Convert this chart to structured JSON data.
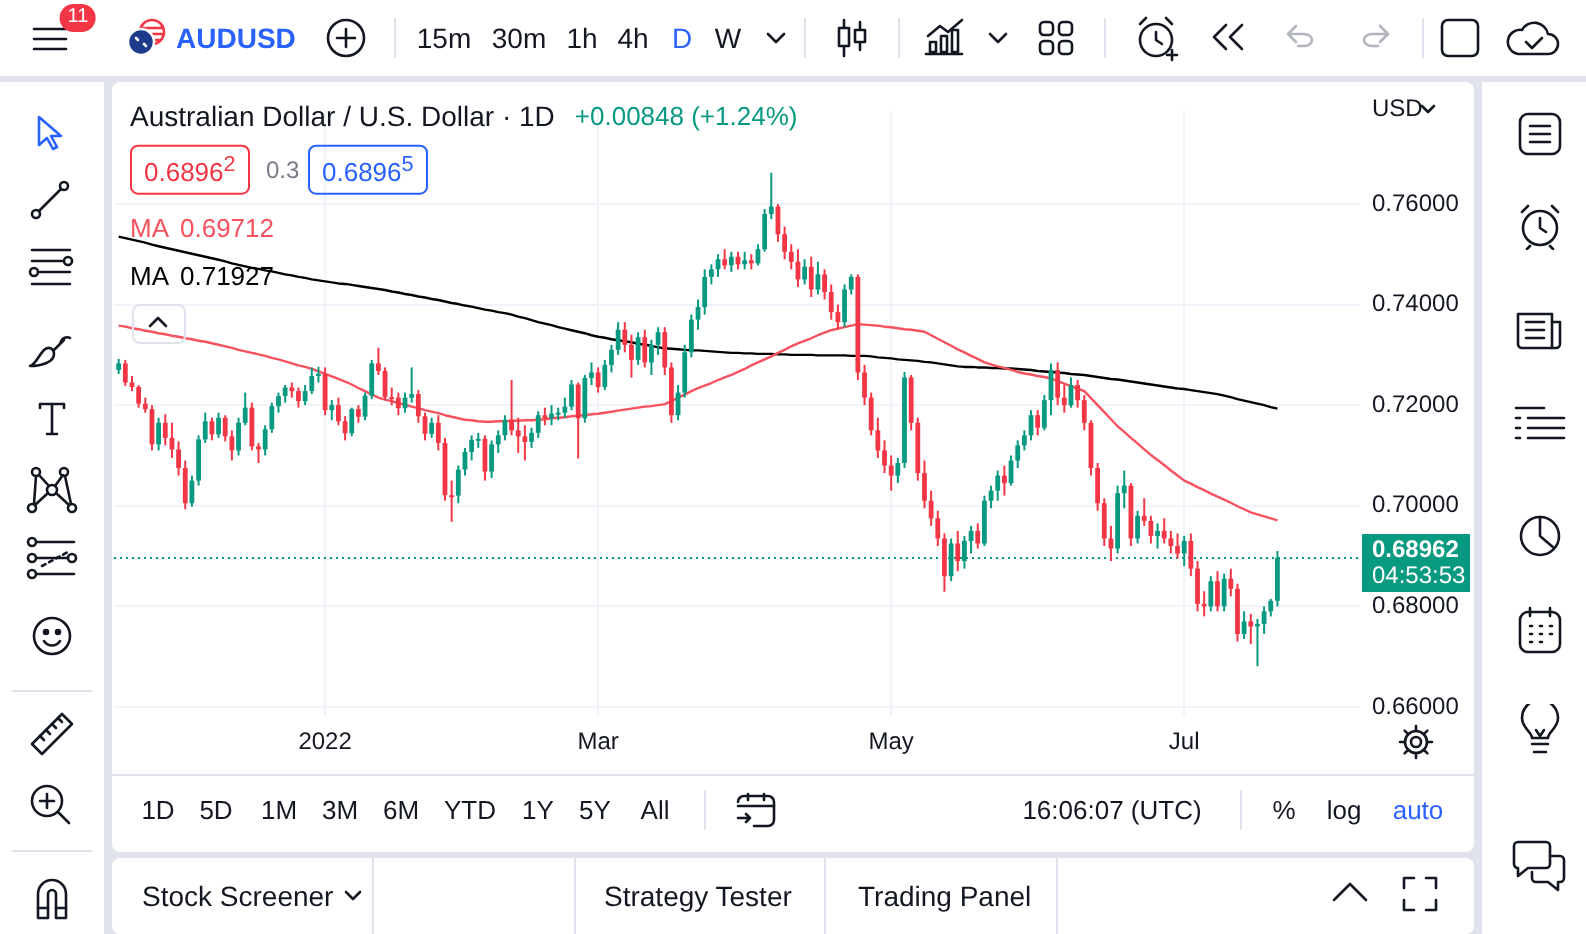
{
  "chart_data": {
    "type": "candlestick",
    "title": "Australian Dollar / U.S. Dollar · 1D",
    "subtitle": "+0.00848 (+1.24%)",
    "categories": [
      null,
      null,
      null,
      null,
      null,
      null,
      null,
      null,
      null,
      null,
      null,
      null,
      null,
      null,
      null,
      null,
      null,
      null,
      null,
      null,
      null,
      null,
      null,
      null,
      null,
      null,
      null,
      null,
      null,
      null,
      null,
      "2022",
      null,
      null,
      null,
      null,
      null,
      null,
      null,
      null,
      null,
      null,
      null,
      null,
      null,
      null,
      null,
      null,
      null,
      null,
      null,
      null,
      null,
      null,
      null,
      null,
      null,
      null,
      null,
      null,
      null,
      null,
      null,
      null,
      null,
      null,
      null,
      null,
      null,
      null,
      null,
      null,
      "Mar",
      null,
      null,
      null,
      null,
      null,
      null,
      null,
      null,
      null,
      null,
      null,
      null,
      null,
      null,
      null,
      null,
      null,
      null,
      null,
      null,
      null,
      null,
      null,
      null,
      null,
      null,
      null,
      null,
      null,
      null,
      null,
      null,
      null,
      null,
      null,
      null,
      null,
      null,
      null,
      null,
      null,
      null,
      null,
      "May",
      null,
      null,
      null,
      null,
      null,
      null,
      null,
      null,
      null,
      null,
      null,
      null,
      null,
      null,
      null,
      null,
      null,
      null,
      null,
      null,
      null,
      null,
      null,
      null,
      null,
      null,
      null,
      null,
      null,
      null,
      null,
      null,
      null,
      null,
      null,
      null,
      null,
      null,
      null,
      null,
      null,
      null,
      null,
      "Jul",
      null,
      null,
      null,
      null,
      null,
      null,
      null,
      null,
      null,
      null,
      null,
      null,
      null,
      null
    ],
    "ohlc": [
      [
        0.727,
        0.7292,
        0.7262,
        0.7283
      ],
      [
        0.7283,
        0.729,
        0.7238,
        0.7245
      ],
      [
        0.7245,
        0.7258,
        0.7228,
        0.7236
      ],
      [
        0.7236,
        0.724,
        0.7195,
        0.7203
      ],
      [
        0.7203,
        0.7215,
        0.7185,
        0.7192
      ],
      [
        0.7192,
        0.72,
        0.711,
        0.7122
      ],
      [
        0.7122,
        0.7175,
        0.711,
        0.7165
      ],
      [
        0.7165,
        0.7182,
        0.712,
        0.7135
      ],
      [
        0.7135,
        0.7165,
        0.7095,
        0.7112
      ],
      [
        0.7112,
        0.7128,
        0.706,
        0.7075
      ],
      [
        0.7075,
        0.709,
        0.6993,
        0.7005
      ],
      [
        0.7005,
        0.706,
        0.6998,
        0.705
      ],
      [
        0.705,
        0.714,
        0.704,
        0.7132
      ],
      [
        0.7132,
        0.7185,
        0.7125,
        0.7168
      ],
      [
        0.7168,
        0.7175,
        0.713,
        0.7142
      ],
      [
        0.7142,
        0.7185,
        0.7135,
        0.7175
      ],
      [
        0.7175,
        0.718,
        0.7128,
        0.7138
      ],
      [
        0.7138,
        0.715,
        0.709,
        0.711
      ],
      [
        0.711,
        0.7175,
        0.71,
        0.7165
      ],
      [
        0.7165,
        0.7225,
        0.716,
        0.7195
      ],
      [
        0.7195,
        0.7205,
        0.711,
        0.7118
      ],
      [
        0.7118,
        0.7125,
        0.7085,
        0.7112
      ],
      [
        0.7112,
        0.716,
        0.71,
        0.7152
      ],
      [
        0.7152,
        0.7205,
        0.7145,
        0.7198
      ],
      [
        0.7198,
        0.7225,
        0.7185,
        0.7218
      ],
      [
        0.7218,
        0.724,
        0.7205,
        0.7235
      ],
      [
        0.7235,
        0.7245,
        0.7215,
        0.7228
      ],
      [
        0.7228,
        0.7235,
        0.7195,
        0.7208
      ],
      [
        0.7208,
        0.724,
        0.72,
        0.7228
      ],
      [
        0.7228,
        0.7275,
        0.7222,
        0.7258
      ],
      [
        0.7258,
        0.7276,
        0.7245,
        0.7262
      ],
      [
        0.7262,
        0.7275,
        0.718,
        0.719
      ],
      [
        0.719,
        0.721,
        0.717,
        0.72
      ],
      [
        0.72,
        0.7215,
        0.716,
        0.7168
      ],
      [
        0.7168,
        0.7178,
        0.713,
        0.7144
      ],
      [
        0.7144,
        0.7195,
        0.7138,
        0.7192
      ],
      [
        0.7192,
        0.72,
        0.7165,
        0.7177
      ],
      [
        0.7177,
        0.7225,
        0.717,
        0.7219
      ],
      [
        0.7219,
        0.729,
        0.7212,
        0.7283
      ],
      [
        0.7283,
        0.7314,
        0.726,
        0.7268
      ],
      [
        0.7268,
        0.7275,
        0.721,
        0.7216
      ],
      [
        0.7216,
        0.7235,
        0.72,
        0.7215
      ],
      [
        0.7215,
        0.7225,
        0.718,
        0.7194
      ],
      [
        0.7194,
        0.7225,
        0.7185,
        0.7215
      ],
      [
        0.7215,
        0.7275,
        0.7205,
        0.7222
      ],
      [
        0.7222,
        0.723,
        0.7165,
        0.7178
      ],
      [
        0.7178,
        0.7185,
        0.713,
        0.7143
      ],
      [
        0.7143,
        0.7175,
        0.7135,
        0.7165
      ],
      [
        0.7165,
        0.718,
        0.711,
        0.7125
      ],
      [
        0.7125,
        0.7135,
        0.701,
        0.7021
      ],
      [
        0.7021,
        0.705,
        0.6968,
        0.702
      ],
      [
        0.702,
        0.708,
        0.7005,
        0.7072
      ],
      [
        0.7072,
        0.7115,
        0.706,
        0.7107
      ],
      [
        0.7107,
        0.714,
        0.709,
        0.7131
      ],
      [
        0.7131,
        0.7145,
        0.7115,
        0.7133
      ],
      [
        0.7133,
        0.714,
        0.705,
        0.7068
      ],
      [
        0.7068,
        0.713,
        0.7055,
        0.7122
      ],
      [
        0.7122,
        0.715,
        0.7105,
        0.714
      ],
      [
        0.714,
        0.718,
        0.713,
        0.7171
      ],
      [
        0.7171,
        0.725,
        0.714,
        0.715
      ],
      [
        0.715,
        0.7175,
        0.7105,
        0.7138
      ],
      [
        0.7138,
        0.716,
        0.709,
        0.7127
      ],
      [
        0.7127,
        0.7155,
        0.7115,
        0.7145
      ],
      [
        0.7145,
        0.7188,
        0.7135,
        0.718
      ],
      [
        0.718,
        0.7195,
        0.716,
        0.7174
      ],
      [
        0.7174,
        0.72,
        0.716,
        0.7183
      ],
      [
        0.7183,
        0.7195,
        0.717,
        0.7185
      ],
      [
        0.7185,
        0.7215,
        0.7175,
        0.7197
      ],
      [
        0.7197,
        0.725,
        0.719,
        0.7241
      ],
      [
        0.7241,
        0.7245,
        0.7094,
        0.7174
      ],
      [
        0.7174,
        0.726,
        0.7165,
        0.7254
      ],
      [
        0.7254,
        0.7285,
        0.724,
        0.7265
      ],
      [
        0.7265,
        0.7275,
        0.7225,
        0.7236
      ],
      [
        0.7236,
        0.729,
        0.723,
        0.728
      ],
      [
        0.728,
        0.732,
        0.7265,
        0.731
      ],
      [
        0.731,
        0.7365,
        0.73,
        0.735
      ],
      [
        0.735,
        0.7365,
        0.7305,
        0.732
      ],
      [
        0.732,
        0.734,
        0.7255,
        0.729
      ],
      [
        0.729,
        0.7345,
        0.728,
        0.7335
      ],
      [
        0.7335,
        0.735,
        0.7275,
        0.7285
      ],
      [
        0.7285,
        0.733,
        0.726,
        0.732
      ],
      [
        0.732,
        0.7355,
        0.73,
        0.7345
      ],
      [
        0.7345,
        0.7355,
        0.726,
        0.7275
      ],
      [
        0.7275,
        0.7285,
        0.7165,
        0.718
      ],
      [
        0.718,
        0.724,
        0.717,
        0.7225
      ],
      [
        0.7225,
        0.732,
        0.7215,
        0.7305
      ],
      [
        0.7305,
        0.738,
        0.7295,
        0.737
      ],
      [
        0.737,
        0.741,
        0.735,
        0.7395
      ],
      [
        0.7395,
        0.747,
        0.738,
        0.7455
      ],
      [
        0.7455,
        0.748,
        0.744,
        0.747
      ],
      [
        0.747,
        0.75,
        0.7455,
        0.749
      ],
      [
        0.749,
        0.751,
        0.747,
        0.7478
      ],
      [
        0.7478,
        0.7505,
        0.7465,
        0.7495
      ],
      [
        0.7495,
        0.7505,
        0.747,
        0.748
      ],
      [
        0.748,
        0.7505,
        0.747,
        0.7488
      ],
      [
        0.7488,
        0.75,
        0.747,
        0.7482
      ],
      [
        0.7482,
        0.752,
        0.7478,
        0.751
      ],
      [
        0.751,
        0.759,
        0.7505,
        0.758
      ],
      [
        0.758,
        0.7662,
        0.757,
        0.7595
      ],
      [
        0.7595,
        0.76,
        0.7525,
        0.754
      ],
      [
        0.754,
        0.7555,
        0.749,
        0.7505
      ],
      [
        0.7505,
        0.752,
        0.747,
        0.7485
      ],
      [
        0.7485,
        0.751,
        0.7435,
        0.745
      ],
      [
        0.745,
        0.749,
        0.744,
        0.7475
      ],
      [
        0.7475,
        0.7495,
        0.7415,
        0.743
      ],
      [
        0.743,
        0.7485,
        0.742,
        0.746
      ],
      [
        0.746,
        0.747,
        0.741,
        0.7425
      ],
      [
        0.7425,
        0.744,
        0.737,
        0.7385
      ],
      [
        0.7385,
        0.74,
        0.735,
        0.7365
      ],
      [
        0.7365,
        0.744,
        0.7355,
        0.743
      ],
      [
        0.743,
        0.746,
        0.742,
        0.7455
      ],
      [
        0.7455,
        0.746,
        0.725,
        0.7265
      ],
      [
        0.7265,
        0.728,
        0.72,
        0.7215
      ],
      [
        0.7215,
        0.7225,
        0.714,
        0.715
      ],
      [
        0.715,
        0.7175,
        0.7095,
        0.711
      ],
      [
        0.711,
        0.713,
        0.7065,
        0.708
      ],
      [
        0.708,
        0.71,
        0.703,
        0.706
      ],
      [
        0.706,
        0.7095,
        0.7045,
        0.7085
      ],
      [
        0.7085,
        0.7266,
        0.7075,
        0.7255
      ],
      [
        0.7255,
        0.726,
        0.715,
        0.7165
      ],
      [
        0.7165,
        0.7175,
        0.705,
        0.7065
      ],
      [
        0.7065,
        0.709,
        0.6995,
        0.701
      ],
      [
        0.701,
        0.703,
        0.696,
        0.6975
      ],
      [
        0.6975,
        0.699,
        0.692,
        0.6935
      ],
      [
        0.6935,
        0.6945,
        0.6829,
        0.686
      ],
      [
        0.686,
        0.6935,
        0.685,
        0.6925
      ],
      [
        0.6925,
        0.695,
        0.687,
        0.689
      ],
      [
        0.689,
        0.694,
        0.6875,
        0.693
      ],
      [
        0.693,
        0.696,
        0.6905,
        0.695
      ],
      [
        0.695,
        0.6965,
        0.6915,
        0.6925
      ],
      [
        0.6925,
        0.702,
        0.692,
        0.701
      ],
      [
        0.701,
        0.704,
        0.6995,
        0.703
      ],
      [
        0.703,
        0.707,
        0.701,
        0.706
      ],
      [
        0.706,
        0.708,
        0.702,
        0.7045
      ],
      [
        0.7045,
        0.71,
        0.704,
        0.709
      ],
      [
        0.709,
        0.713,
        0.7075,
        0.712
      ],
      [
        0.712,
        0.715,
        0.711,
        0.714
      ],
      [
        0.714,
        0.719,
        0.713,
        0.718
      ],
      [
        0.718,
        0.719,
        0.714,
        0.7155
      ],
      [
        0.7155,
        0.722,
        0.715,
        0.721
      ],
      [
        0.721,
        0.7283,
        0.718,
        0.727
      ],
      [
        0.727,
        0.7285,
        0.72,
        0.7215
      ],
      [
        0.7215,
        0.724,
        0.7185,
        0.72
      ],
      [
        0.72,
        0.7255,
        0.7195,
        0.724
      ],
      [
        0.724,
        0.725,
        0.7195,
        0.721
      ],
      [
        0.721,
        0.722,
        0.715,
        0.7165
      ],
      [
        0.7165,
        0.717,
        0.706,
        0.7075
      ],
      [
        0.7075,
        0.7085,
        0.699,
        0.7005
      ],
      [
        0.7005,
        0.7015,
        0.692,
        0.6935
      ],
      [
        0.6935,
        0.696,
        0.689,
        0.6915
      ],
      [
        0.6915,
        0.704,
        0.6905,
        0.7025
      ],
      [
        0.7025,
        0.707,
        0.6995,
        0.704
      ],
      [
        0.704,
        0.7045,
        0.692,
        0.6935
      ],
      [
        0.6935,
        0.699,
        0.6925,
        0.698
      ],
      [
        0.698,
        0.7015,
        0.696,
        0.697
      ],
      [
        0.697,
        0.698,
        0.6925,
        0.694
      ],
      [
        0.694,
        0.6965,
        0.6915,
        0.695
      ],
      [
        0.695,
        0.6975,
        0.6925,
        0.6935
      ],
      [
        0.6935,
        0.695,
        0.6905,
        0.692
      ],
      [
        0.692,
        0.6945,
        0.6895,
        0.6905
      ],
      [
        0.6905,
        0.694,
        0.688,
        0.693
      ],
      [
        0.693,
        0.6945,
        0.686,
        0.6875
      ],
      [
        0.6875,
        0.689,
        0.679,
        0.6805
      ],
      [
        0.6805,
        0.683,
        0.678,
        0.68
      ],
      [
        0.68,
        0.686,
        0.679,
        0.685
      ],
      [
        0.685,
        0.687,
        0.679,
        0.68
      ],
      [
        0.68,
        0.6865,
        0.679,
        0.6855
      ],
      [
        0.6855,
        0.6875,
        0.682,
        0.6835
      ],
      [
        0.6835,
        0.6845,
        0.673,
        0.6745
      ],
      [
        0.6745,
        0.679,
        0.6735,
        0.677
      ],
      [
        0.677,
        0.6785,
        0.6725,
        0.676
      ],
      [
        0.676,
        0.6775,
        0.6681,
        0.6765
      ],
      [
        0.6765,
        0.68,
        0.6745,
        0.679
      ],
      [
        0.679,
        0.6815,
        0.678,
        0.6811
      ],
      [
        0.6811,
        0.691,
        0.68,
        0.68962
      ]
    ],
    "colors": [
      "#089981",
      "#f23645",
      "#f23645",
      "#f23645",
      "#f23645",
      "#f23645",
      "#089981",
      "#f23645",
      "#f23645",
      "#f23645",
      "#f23645",
      "#089981",
      "#089981",
      "#089981",
      "#f23645",
      "#089981",
      "#f23645",
      "#f23645",
      "#089981",
      "#089981",
      "#f23645",
      "#f23645",
      "#089981",
      "#089981",
      "#089981",
      "#089981",
      "#f23645",
      "#f23645",
      "#089981",
      "#089981",
      "#089981",
      "#f23645",
      "#089981",
      "#f23645",
      "#f23645",
      "#089981",
      "#f23645",
      "#089981",
      "#089981",
      "#f23645",
      "#f23645",
      "#f23645",
      "#f23645",
      "#089981",
      "#089981",
      "#f23645",
      "#f23645",
      "#089981",
      "#f23645",
      "#f23645",
      "#f23645",
      "#089981",
      "#089981",
      "#089981",
      "#089981",
      "#f23645",
      "#089981",
      "#089981",
      "#089981",
      "#f23645",
      "#f23645",
      "#f23645",
      "#089981",
      "#089981",
      "#f23645",
      "#089981",
      "#089981",
      "#089981",
      "#089981",
      "#f23645",
      "#089981",
      "#089981",
      "#f23645",
      "#089981",
      "#089981",
      "#089981",
      "#f23645",
      "#f23645",
      "#089981",
      "#f23645",
      "#089981",
      "#089981",
      "#f23645",
      "#f23645",
      "#089981",
      "#089981",
      "#089981",
      "#089981",
      "#089981",
      "#089981",
      "#089981",
      "#f23645",
      "#089981",
      "#f23645",
      "#089981",
      "#f23645",
      "#089981",
      "#089981",
      "#089981",
      "#f23645",
      "#f23645",
      "#f23645",
      "#f23645",
      "#089981",
      "#f23645",
      "#089981",
      "#f23645",
      "#f23645",
      "#f23645",
      "#089981",
      "#089981",
      "#f23645",
      "#f23645",
      "#f23645",
      "#f23645",
      "#f23645",
      "#f23645",
      "#089981",
      "#089981",
      "#f23645",
      "#f23645",
      "#f23645",
      "#f23645",
      "#f23645",
      "#f23645",
      "#089981",
      "#f23645",
      "#089981",
      "#089981",
      "#f23645",
      "#089981",
      "#089981",
      "#089981",
      "#f23645",
      "#089981",
      "#089981",
      "#089981",
      "#089981",
      "#f23645",
      "#089981",
      "#089981",
      "#f23645",
      "#f23645",
      "#089981",
      "#f23645",
      "#f23645",
      "#f23645",
      "#f23645",
      "#f23645",
      "#f23645",
      "#089981",
      "#089981",
      "#f23645",
      "#089981",
      "#f23645",
      "#f23645",
      "#089981",
      "#f23645",
      "#f23645",
      "#f23645",
      "#089981",
      "#f23645",
      "#f23645",
      "#f23645",
      "#089981",
      "#f23645",
      "#089981",
      "#f23645",
      "#f23645",
      "#089981",
      "#f23645",
      "#089981",
      "#089981",
      "#089981",
      "#089981"
    ],
    "series": [
      {
        "name": "MA",
        "type": "line",
        "color": "#f7525f",
        "values": [
          0.7358,
          0.7356,
          0.7353,
          0.7351,
          0.7348,
          0.7346,
          0.7343,
          0.7341,
          0.7338,
          0.7336,
          0.7333,
          0.7331,
          0.7328,
          0.7326,
          0.7323,
          0.732,
          0.7317,
          0.7314,
          0.731,
          0.7307,
          0.7304,
          0.7301,
          0.7298,
          0.7294,
          0.7291,
          0.7287,
          0.7283,
          0.7279,
          0.7276,
          0.7272,
          0.7267,
          0.7262,
          0.7257,
          0.7252,
          0.7247,
          0.7241,
          0.7234,
          0.7228,
          0.7221,
          0.7215,
          0.7211,
          0.7208,
          0.7204,
          0.7201,
          0.7197,
          0.7194,
          0.719,
          0.7187,
          0.7184,
          0.718,
          0.7177,
          0.7174,
          0.7171,
          0.717,
          0.7168,
          0.7167,
          0.7167,
          0.7168,
          0.7168,
          0.7169,
          0.7169,
          0.717,
          0.717,
          0.7171,
          0.7172,
          0.7174,
          0.7175,
          0.7176,
          0.7178,
          0.7179,
          0.718,
          0.7182,
          0.7183,
          0.7185,
          0.7187,
          0.7189,
          0.7191,
          0.7193,
          0.7195,
          0.7197,
          0.7198,
          0.72,
          0.7202,
          0.7208,
          0.7215,
          0.7221,
          0.7228,
          0.7234,
          0.7239,
          0.7244,
          0.725,
          0.7255,
          0.726,
          0.7266,
          0.7272,
          0.7279,
          0.7285,
          0.7291,
          0.7297,
          0.7304,
          0.731,
          0.7317,
          0.7323,
          0.7328,
          0.7333,
          0.7339,
          0.7344,
          0.7349,
          0.7352,
          0.7355,
          0.7358,
          0.7361,
          0.736,
          0.7359,
          0.7358,
          0.7356,
          0.7355,
          0.7353,
          0.7351,
          0.735,
          0.7348,
          0.7346,
          0.7339,
          0.7332,
          0.7325,
          0.7318,
          0.7311,
          0.7305,
          0.7298,
          0.7292,
          0.7285,
          0.7281,
          0.7277,
          0.7274,
          0.727,
          0.7266,
          0.7263,
          0.7261,
          0.7258,
          0.7256,
          0.7253,
          0.7248,
          0.7243,
          0.7238,
          0.7233,
          0.7228,
          0.7214,
          0.72,
          0.7186,
          0.7172,
          0.7158,
          0.7147,
          0.7135,
          0.7124,
          0.7112,
          0.7101,
          0.7091,
          0.7081,
          0.707,
          0.706,
          0.705,
          0.7044,
          0.7037,
          0.7031,
          0.7024,
          0.7018,
          0.7012,
          0.7006,
          0.6999,
          0.6993,
          0.6987,
          0.6983,
          0.6979,
          0.6975,
          0.6971
        ]
      },
      {
        "name": "MA",
        "type": "line",
        "color": "#000000",
        "values": [
          0.7535,
          0.7532,
          0.7529,
          0.7526,
          0.7523,
          0.7519,
          0.7516,
          0.7513,
          0.751,
          0.7507,
          0.7504,
          0.7501,
          0.7498,
          0.7495,
          0.7492,
          0.7489,
          0.7486,
          0.7482,
          0.7479,
          0.7476,
          0.7473,
          0.7471,
          0.7468,
          0.7466,
          0.7463,
          0.746,
          0.7458,
          0.7455,
          0.7453,
          0.745,
          0.7448,
          0.7446,
          0.7444,
          0.7442,
          0.7441,
          0.7439,
          0.7437,
          0.7435,
          0.7433,
          0.7431,
          0.7429,
          0.7426,
          0.7424,
          0.7421,
          0.7419,
          0.7416,
          0.7414,
          0.7411,
          0.7409,
          0.7406,
          0.7403,
          0.7401,
          0.7398,
          0.7396,
          0.7393,
          0.739,
          0.7388,
          0.7385,
          0.7383,
          0.738,
          0.7376,
          0.7373,
          0.7369,
          0.7365,
          0.7362,
          0.7359,
          0.7355,
          0.7352,
          0.7349,
          0.7346,
          0.7343,
          0.7339,
          0.7336,
          0.7334,
          0.7331,
          0.7329,
          0.7327,
          0.7325,
          0.7322,
          0.732,
          0.7318,
          0.7315,
          0.7313,
          0.7312,
          0.7311,
          0.731,
          0.7309,
          0.7309,
          0.7308,
          0.7307,
          0.7306,
          0.7305,
          0.7304,
          0.7304,
          0.7303,
          0.7303,
          0.7302,
          0.7302,
          0.7302,
          0.7301,
          0.7301,
          0.73,
          0.73,
          0.73,
          0.73,
          0.7299,
          0.7299,
          0.7299,
          0.7299,
          0.7299,
          0.7298,
          0.7298,
          0.7298,
          0.7297,
          0.7295,
          0.7294,
          0.7293,
          0.7291,
          0.729,
          0.7289,
          0.7288,
          0.7286,
          0.7285,
          0.7283,
          0.7281,
          0.7279,
          0.7277,
          0.7276,
          0.7276,
          0.7275,
          0.7275,
          0.7274,
          0.7274,
          0.7273,
          0.7273,
          0.7272,
          0.7271,
          0.727,
          0.7268,
          0.7267,
          0.7266,
          0.7265,
          0.7264,
          0.7262,
          0.7261,
          0.726,
          0.7258,
          0.7256,
          0.7254,
          0.7252,
          0.7251,
          0.7249,
          0.7247,
          0.7245,
          0.7243,
          0.7241,
          0.7239,
          0.7237,
          0.7235,
          0.7233,
          0.7232,
          0.723,
          0.7228,
          0.7226,
          0.7224,
          0.7222,
          0.7219,
          0.7216,
          0.7212,
          0.7209,
          0.7206,
          0.7203,
          0.72,
          0.7196,
          0.7193
        ]
      }
    ],
    "ylim": [
      0.6582,
      0.7786
    ],
    "yticks": [
      {
        "value": 0.66,
        "label": "0.66000"
      },
      {
        "value": 0.68,
        "label": "0.68000"
      },
      {
        "value": 0.7,
        "label": "0.70000"
      },
      {
        "value": 0.72,
        "label": "0.72000"
      },
      {
        "value": 0.74,
        "label": "0.74000"
      },
      {
        "value": 0.76,
        "label": "0.76000"
      }
    ],
    "ref_lines": [
      {
        "axis": "y",
        "value": 0.68962,
        "color": "#089981",
        "line_style": "dotted"
      }
    ],
    "grid": true,
    "legend": "top left",
    "annotations": [
      "0.6896$^{2}$",
      "0.3",
      "0.6896$^{5}$",
      "0.69712",
      "0.71927",
      "USD",
      "04:53:53",
      "AUDUSD",
      "11",
      "15m",
      "30m",
      "1h",
      "4h",
      "D",
      "W",
      "1D",
      "5D",
      "1M",
      "3M",
      "6M",
      "YTD",
      "1Y",
      "5Y",
      "All",
      "16:06:07 (UTC)",
      "%",
      "log",
      "auto",
      "Stock Screener",
      "Strategy Tester",
      "Trading Panel",
      "0.68962"
    ]
  }
}
